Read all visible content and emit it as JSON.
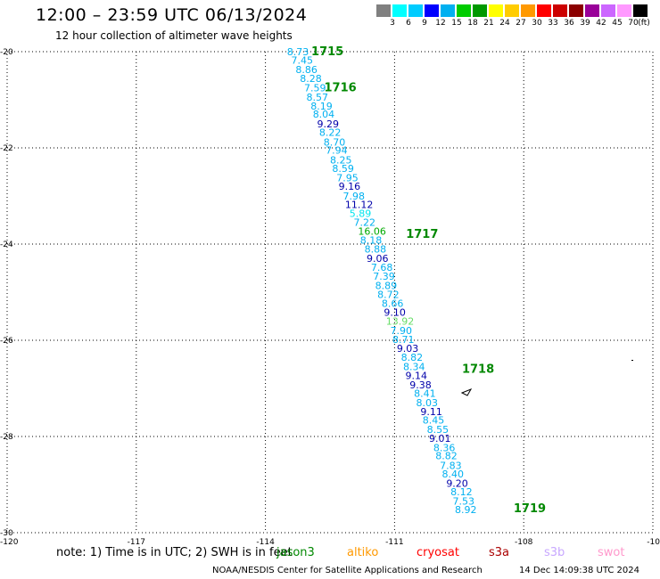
{
  "title": "12:00 – 23:59 UTC 06/13/2024",
  "subtitle": "12 hour collection of altimeter wave heights",
  "legend": {
    "unit": "(ft)",
    "colors": [
      "#808080",
      "#00ffff",
      "#00ccff",
      "#0000ff",
      "#00b0f0",
      "#00cc00",
      "#009900",
      "#ffff00",
      "#ffcc00",
      "#ff9900",
      "#ff0000",
      "#cc0000",
      "#8b0000",
      "#990099",
      "#cc66ff",
      "#ff99ff",
      "#000000"
    ],
    "labels": [
      "3",
      "6",
      "9",
      "12",
      "15",
      "18",
      "21",
      "24",
      "27",
      "30",
      "33",
      "36",
      "39",
      "42",
      "45",
      "70"
    ]
  },
  "axes": {
    "lat_labels": [
      "-20",
      "-22",
      "-24",
      "-26",
      "-28",
      "-30"
    ],
    "lon_labels": [
      "-120",
      "-117",
      "-114",
      "-111",
      "-108",
      "-10"
    ]
  },
  "map_data": {
    "type": "satellite-track",
    "lon_range": [
      -120,
      -105
    ],
    "lat_range": [
      -30,
      -20
    ],
    "time_markers": [
      {
        "time": "1715",
        "lon": -113.1,
        "lat": -20.0
      },
      {
        "time": "1716",
        "lon": -112.8,
        "lat": -20.75
      },
      {
        "time": "1717",
        "lon": -110.9,
        "lat": -23.8
      },
      {
        "time": "1718",
        "lon": -109.6,
        "lat": -26.6
      },
      {
        "time": "1719",
        "lon": -108.4,
        "lat": -29.5
      }
    ],
    "points": [
      {
        "v": "8.73",
        "c": "#00b0f0",
        "lon": -113.5,
        "lat": -20.0
      },
      {
        "v": "7.45",
        "c": "#00b0f0",
        "lon": -113.4,
        "lat": -20.18
      },
      {
        "v": "8.86",
        "c": "#00b0f0",
        "lon": -113.3,
        "lat": -20.37
      },
      {
        "v": "8.28",
        "c": "#00b0f0",
        "lon": -113.2,
        "lat": -20.56
      },
      {
        "v": "7.59",
        "c": "#00b0f0",
        "lon": -113.1,
        "lat": -20.75
      },
      {
        "v": "8.57",
        "c": "#00b0f0",
        "lon": -113.05,
        "lat": -20.94
      },
      {
        "v": "8.19",
        "c": "#00b0f0",
        "lon": -112.95,
        "lat": -21.13
      },
      {
        "v": "8.04",
        "c": "#00b0f0",
        "lon": -112.9,
        "lat": -21.3
      },
      {
        "v": "9.29",
        "c": "#0000aa",
        "lon": -112.8,
        "lat": -21.5
      },
      {
        "v": "8.22",
        "c": "#00b0f0",
        "lon": -112.75,
        "lat": -21.68
      },
      {
        "v": "8.70",
        "c": "#00b0f0",
        "lon": -112.65,
        "lat": -21.88
      },
      {
        "v": "7.94",
        "c": "#00b0f0",
        "lon": -112.6,
        "lat": -22.05
      },
      {
        "v": "8.25",
        "c": "#00b0f0",
        "lon": -112.5,
        "lat": -22.25
      },
      {
        "v": "8.59",
        "c": "#00b0f0",
        "lon": -112.45,
        "lat": -22.43
      },
      {
        "v": "7.95",
        "c": "#00b0f0",
        "lon": -112.35,
        "lat": -22.62
      },
      {
        "v": "9.16",
        "c": "#0000aa",
        "lon": -112.3,
        "lat": -22.8
      },
      {
        "v": "7.98",
        "c": "#00b0f0",
        "lon": -112.2,
        "lat": -23.0
      },
      {
        "v": "11.12",
        "c": "#0000aa",
        "lon": -112.15,
        "lat": -23.18
      },
      {
        "v": "5.89",
        "c": "#00e5ee",
        "lon": -112.05,
        "lat": -23.36
      },
      {
        "v": "7.22",
        "c": "#00b0f0",
        "lon": -111.95,
        "lat": -23.55
      },
      {
        "v": "16.06",
        "c": "#00aa00",
        "lon": -111.85,
        "lat": -23.73
      },
      {
        "v": "8.18",
        "c": "#00b0f0",
        "lon": -111.8,
        "lat": -23.92
      },
      {
        "v": "8.88",
        "c": "#00b0f0",
        "lon": -111.7,
        "lat": -24.1
      },
      {
        "v": "9.06",
        "c": "#0000aa",
        "lon": -111.65,
        "lat": -24.3
      },
      {
        "v": "7.68",
        "c": "#00b0f0",
        "lon": -111.55,
        "lat": -24.48
      },
      {
        "v": "7.39",
        "c": "#00b0f0",
        "lon": -111.5,
        "lat": -24.67
      },
      {
        "v": "8.89",
        "c": "#00b0f0",
        "lon": -111.45,
        "lat": -24.86
      },
      {
        "v": "8.72",
        "c": "#00b0f0",
        "lon": -111.4,
        "lat": -25.05
      },
      {
        "v": "8.66",
        "c": "#00b0f0",
        "lon": -111.3,
        "lat": -25.23
      },
      {
        "v": "9.10",
        "c": "#0000aa",
        "lon": -111.25,
        "lat": -25.42
      },
      {
        "v": "13.92",
        "c": "#66dd66",
        "lon": -111.2,
        "lat": -25.6
      },
      {
        "v": "7.90",
        "c": "#00b0f0",
        "lon": -111.1,
        "lat": -25.8
      },
      {
        "v": "8.71",
        "c": "#00b0f0",
        "lon": -111.05,
        "lat": -25.98
      },
      {
        "v": "9.03",
        "c": "#0000aa",
        "lon": -110.95,
        "lat": -26.17
      },
      {
        "v": "8.82",
        "c": "#00b0f0",
        "lon": -110.85,
        "lat": -26.35
      },
      {
        "v": "8.34",
        "c": "#00b0f0",
        "lon": -110.8,
        "lat": -26.55
      },
      {
        "v": "9.14",
        "c": "#0000aa",
        "lon": -110.75,
        "lat": -26.73
      },
      {
        "v": "9.38",
        "c": "#0000aa",
        "lon": -110.65,
        "lat": -26.93
      },
      {
        "v": "8.41",
        "c": "#00b0f0",
        "lon": -110.55,
        "lat": -27.1
      },
      {
        "v": "8.03",
        "c": "#00b0f0",
        "lon": -110.5,
        "lat": -27.3
      },
      {
        "v": "9.11",
        "c": "#0000aa",
        "lon": -110.4,
        "lat": -27.48
      },
      {
        "v": "8.45",
        "c": "#00b0f0",
        "lon": -110.35,
        "lat": -27.66
      },
      {
        "v": "8.55",
        "c": "#00b0f0",
        "lon": -110.25,
        "lat": -27.85
      },
      {
        "v": "9.01",
        "c": "#0000aa",
        "lon": -110.2,
        "lat": -28.04
      },
      {
        "v": "8.36",
        "c": "#00b0f0",
        "lon": -110.1,
        "lat": -28.23
      },
      {
        "v": "8.82",
        "c": "#00b0f0",
        "lon": -110.05,
        "lat": -28.4
      },
      {
        "v": "7.83",
        "c": "#00b0f0",
        "lon": -109.95,
        "lat": -28.6
      },
      {
        "v": "8.40",
        "c": "#00b0f0",
        "lon": -109.9,
        "lat": -28.78
      },
      {
        "v": "9.20",
        "c": "#0000aa",
        "lon": -109.8,
        "lat": -28.97
      },
      {
        "v": "8.12",
        "c": "#00b0f0",
        "lon": -109.7,
        "lat": -29.15
      },
      {
        "v": "7.53",
        "c": "#00b0f0",
        "lon": -109.65,
        "lat": -29.34
      },
      {
        "v": "8.92",
        "c": "#00b0f0",
        "lon": -109.6,
        "lat": -29.52
      }
    ]
  },
  "note": "note:  1) Time is in UTC; 2) SWH is in feet",
  "satellites": [
    {
      "name": "jason3",
      "color": "#008800"
    },
    {
      "name": "altiko",
      "color": "#ff9900"
    },
    {
      "name": "cryosat",
      "color": "#ff0000"
    },
    {
      "name": "s3a",
      "color": "#aa0000"
    },
    {
      "name": "s3b",
      "color": "#c8a8ff"
    },
    {
      "name": "swot",
      "color": "#ff99cc"
    }
  ],
  "footer": "NOAA/NESDIS Center for Satellite Applications and Research",
  "timestamp": "14 Dec 14:09:38 UTC 2024"
}
